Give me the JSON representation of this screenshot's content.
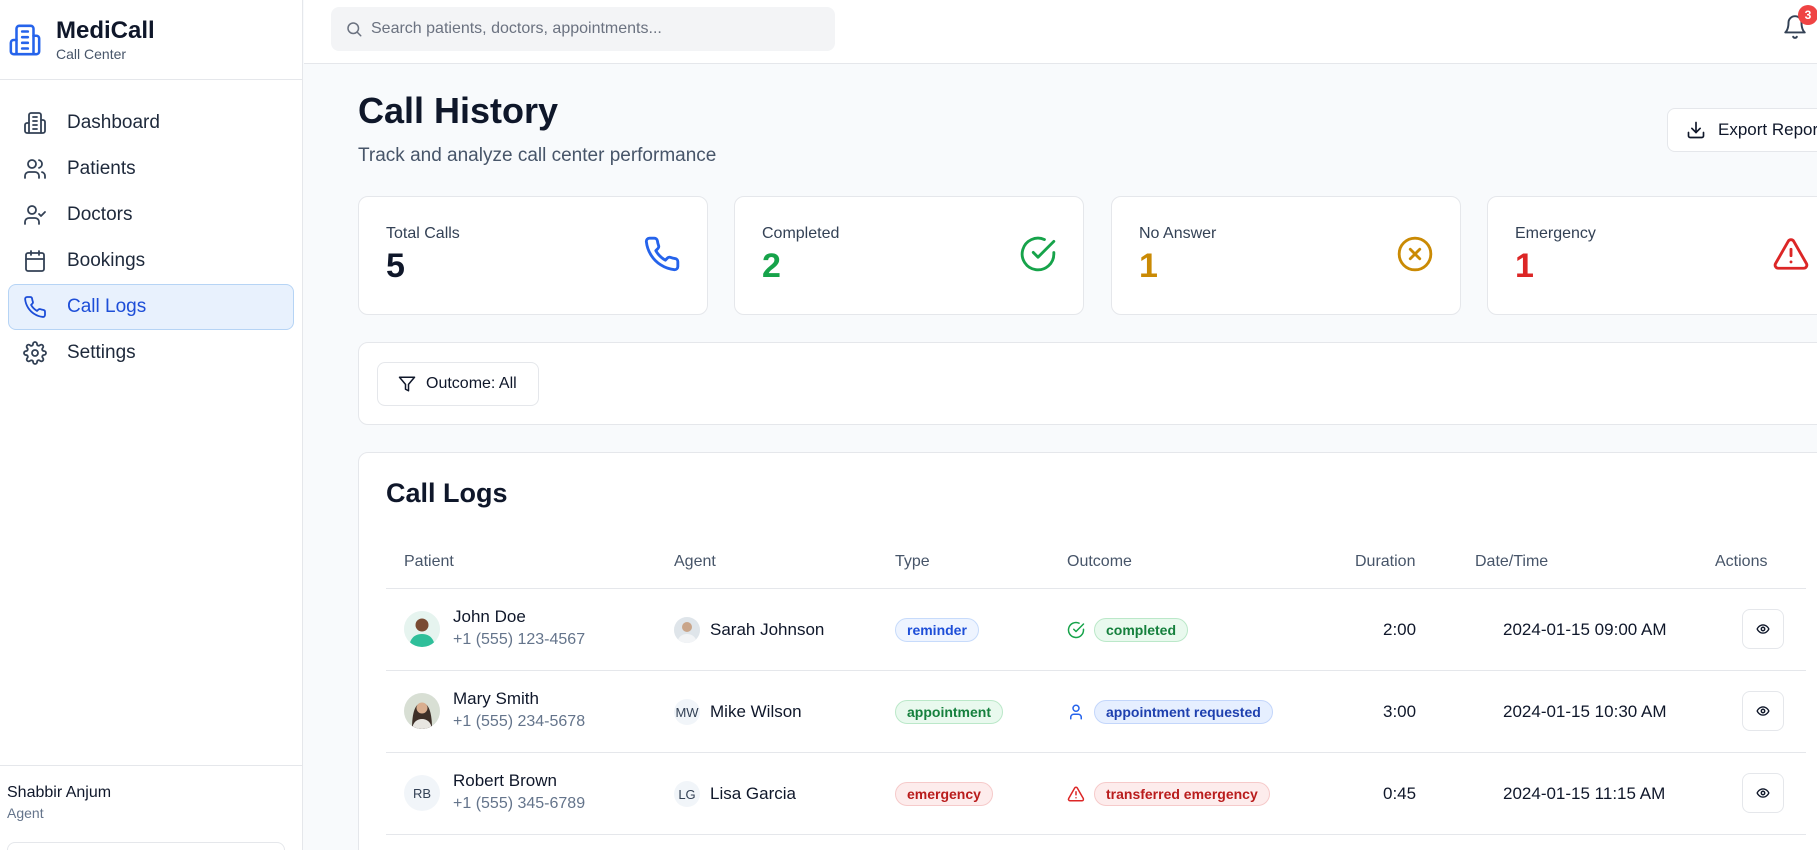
{
  "brand": {
    "title": "MediCall",
    "subtitle": "Call Center",
    "icon": "hospital-building-icon"
  },
  "sidebar": {
    "items": [
      {
        "label": "Dashboard",
        "icon": "building-icon",
        "active": false
      },
      {
        "label": "Patients",
        "icon": "users-icon",
        "active": false
      },
      {
        "label": "Doctors",
        "icon": "user-check-icon",
        "active": false
      },
      {
        "label": "Bookings",
        "icon": "calendar-icon",
        "active": false
      },
      {
        "label": "Call Logs",
        "icon": "phone-icon",
        "active": true
      },
      {
        "label": "Settings",
        "icon": "gear-icon",
        "active": false
      }
    ],
    "user": {
      "name": "Shabbir Anjum",
      "role": "Agent"
    }
  },
  "topbar": {
    "search_placeholder": "Search patients, doctors, appointments...",
    "notification_count": "3"
  },
  "page": {
    "title": "Call History",
    "subtitle": "Track and analyze call center performance",
    "export_label": "Export Report"
  },
  "stats": [
    {
      "label": "Total Calls",
      "value": "5",
      "color": "#0f172a",
      "icon": "phone-icon",
      "icon_color": "#2563eb"
    },
    {
      "label": "Completed",
      "value": "2",
      "color": "#16a34a",
      "icon": "check-circle-icon",
      "icon_color": "#16a34a"
    },
    {
      "label": "No Answer",
      "value": "1",
      "color": "#ca8a04",
      "icon": "x-circle-icon",
      "icon_color": "#ca8a04"
    },
    {
      "label": "Emergency",
      "value": "1",
      "color": "#dc2626",
      "icon": "alert-triangle-icon",
      "icon_color": "#dc2626"
    }
  ],
  "filter": {
    "label": "Outcome: All"
  },
  "logs": {
    "title": "Call Logs",
    "columns": [
      "Patient",
      "Agent",
      "Type",
      "Outcome",
      "Duration",
      "Date/Time",
      "Actions"
    ],
    "rows": [
      {
        "patient": "John Doe",
        "phone": "+1 (555) 123-4567",
        "patient_avatar": "",
        "agent": "Sarah Johnson",
        "agent_avatar": "",
        "type": "reminder",
        "type_style": "p-blue",
        "outcome": "completed",
        "outcome_style": "p-green",
        "outcome_icon": "check-circle-icon",
        "outcome_icon_color": "#16a34a",
        "duration": "2:00",
        "datetime": "2024-01-15 09:00 AM"
      },
      {
        "patient": "Mary Smith",
        "phone": "+1 (555) 234-5678",
        "patient_avatar": "",
        "agent": "Mike Wilson",
        "agent_avatar": "MW",
        "type": "appointment",
        "type_style": "p-green",
        "outcome": "appointment requested",
        "outcome_style": "p-indigo",
        "outcome_icon": "user-icon",
        "outcome_icon_color": "#2563eb",
        "duration": "3:00",
        "datetime": "2024-01-15 10:30 AM"
      },
      {
        "patient": "Robert Brown",
        "phone": "+1 (555) 345-6789",
        "patient_avatar": "RB",
        "agent": "Lisa Garcia",
        "agent_avatar": "LG",
        "type": "emergency",
        "type_style": "p-red",
        "outcome": "transferred emergency",
        "outcome_style": "p-red",
        "outcome_icon": "alert-triangle-icon",
        "outcome_icon_color": "#dc2626",
        "duration": "0:45",
        "datetime": "2024-01-15 11:15 AM"
      }
    ]
  }
}
